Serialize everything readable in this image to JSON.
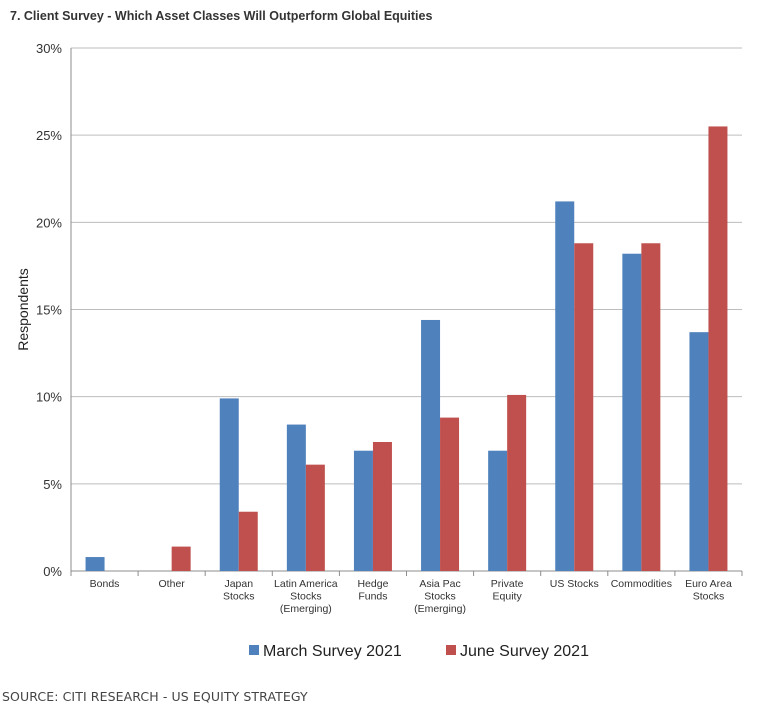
{
  "title": "7. Client Survey - Which Asset Classes Will Outperform Global Equities",
  "source": "SOURCE: CITI RESEARCH - US EQUITY STRATEGY",
  "chart_data": {
    "type": "bar",
    "categories": [
      [
        "Bonds"
      ],
      [
        "Other"
      ],
      [
        "Japan",
        "Stocks"
      ],
      [
        "Latin America",
        "Stocks",
        "(Emerging)"
      ],
      [
        "Hedge",
        "Funds"
      ],
      [
        "Asia Pac",
        "Stocks",
        "(Emerging)"
      ],
      [
        "Private",
        "Equity"
      ],
      [
        "US Stocks"
      ],
      [
        "Commodities"
      ],
      [
        "Euro Area",
        "Stocks"
      ]
    ],
    "series": [
      {
        "name": "March Survey 2021",
        "color": "#4F81BD",
        "values": [
          0.8,
          0.0,
          9.9,
          8.4,
          6.9,
          14.4,
          6.9,
          21.2,
          18.2,
          13.7
        ]
      },
      {
        "name": "June Survey 2021",
        "color": "#C0504D",
        "values": [
          0.0,
          1.4,
          3.4,
          6.1,
          7.4,
          8.8,
          10.1,
          18.8,
          18.8,
          25.5
        ]
      }
    ],
    "xlabel": "",
    "ylabel": "Respondents",
    "ylim": [
      0,
      30
    ],
    "yticks": [
      0,
      5,
      10,
      15,
      20,
      25,
      30
    ],
    "ytick_labels": [
      "0%",
      "5%",
      "10%",
      "15%",
      "20%",
      "25%",
      "30%"
    ],
    "grid": true,
    "legend_position": "bottom"
  }
}
